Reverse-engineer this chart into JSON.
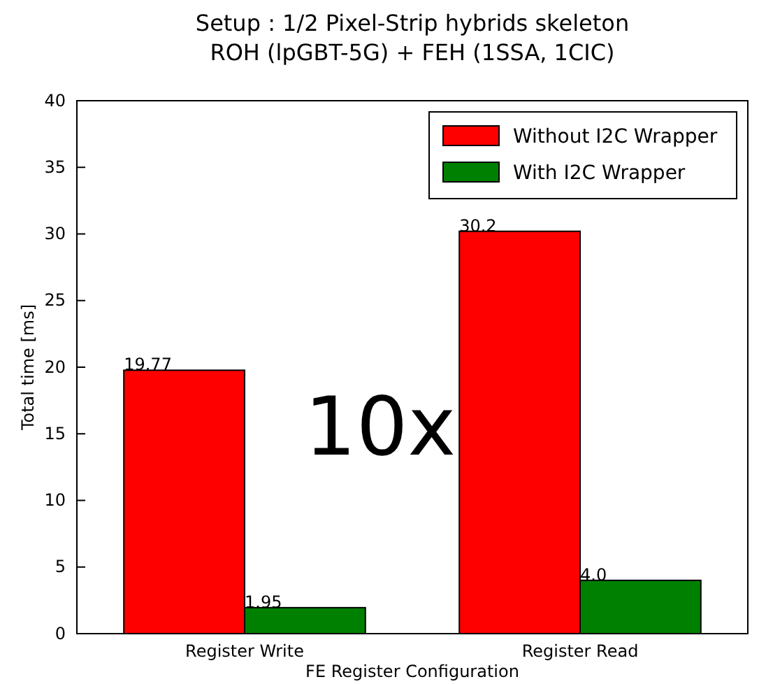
{
  "chart_data": {
    "type": "bar",
    "title": "Setup : 1/2 Pixel-Strip hybrids skeleton\nROH (lpGBT-5G) + FEH (1SSA, 1CIC)",
    "xlabel": "FE Register Configuration",
    "ylabel": "Total time [ms]",
    "categories": [
      "Register Write",
      "Register Read"
    ],
    "series": [
      {
        "name": "Without I2C Wrapper",
        "color": "#ff0000",
        "values": [
          19.77,
          30.2
        ],
        "value_labels": [
          "19.77",
          "30.2"
        ]
      },
      {
        "name": "With I2C Wrapper",
        "color": "#008000",
        "values": [
          1.95,
          4.0
        ],
        "value_labels": [
          "1.95",
          "4.0"
        ]
      }
    ],
    "ylim": [
      0,
      40
    ],
    "yticks": [
      0,
      5,
      10,
      15,
      20,
      25,
      30,
      35,
      40
    ],
    "legend": "top right",
    "grid": false,
    "annotations": [
      "10x"
    ]
  }
}
